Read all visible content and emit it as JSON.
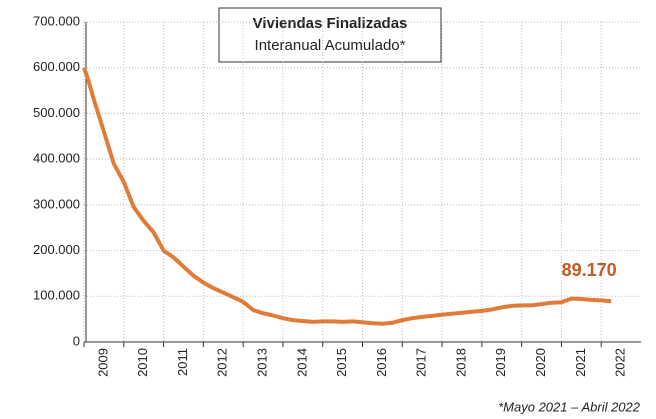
{
  "chart_data": {
    "type": "line",
    "title": "Viviendas Finalizadas",
    "subtitle": "Interanual Acumulado*",
    "footnote": "*Mayo 2021 – Abril 2022",
    "annotation": "89.170",
    "x": [
      2009.0,
      2009.1,
      2009.25,
      2009.5,
      2009.75,
      2010.0,
      2010.25,
      2010.5,
      2010.75,
      2011.0,
      2011.25,
      2011.5,
      2011.75,
      2012.0,
      2012.25,
      2012.5,
      2012.75,
      2013.0,
      2013.25,
      2013.5,
      2013.75,
      2014.0,
      2014.25,
      2014.5,
      2014.75,
      2015.0,
      2015.25,
      2015.5,
      2015.75,
      2016.0,
      2016.25,
      2016.5,
      2016.75,
      2017.0,
      2017.25,
      2017.5,
      2017.75,
      2018.0,
      2018.25,
      2018.5,
      2018.75,
      2019.0,
      2019.25,
      2019.5,
      2019.75,
      2020.0,
      2020.25,
      2020.5,
      2020.75,
      2021.0,
      2021.25,
      2021.5,
      2021.75,
      2022.0,
      2022.25
    ],
    "series": [
      {
        "color": "#e07b39",
        "values": [
          600000,
          575000,
          530000,
          460000,
          390000,
          350000,
          295000,
          265000,
          240000,
          200000,
          185000,
          165000,
          145000,
          130000,
          118000,
          108000,
          98000,
          88000,
          70000,
          63000,
          58000,
          52000,
          48000,
          46000,
          44000,
          45000,
          45000,
          44000,
          45000,
          43000,
          41000,
          40000,
          42000,
          48000,
          52000,
          55000,
          57000,
          60000,
          62000,
          64000,
          66000,
          68000,
          71000,
          76000,
          79000,
          80000,
          80000,
          83000,
          86000,
          87000,
          95000,
          94000,
          92000,
          91000,
          89170
        ]
      }
    ],
    "xlim": [
      2009,
      2023
    ],
    "xticks": [
      2009,
      2010,
      2011,
      2012,
      2013,
      2014,
      2015,
      2016,
      2017,
      2018,
      2019,
      2020,
      2021,
      2022
    ],
    "ylim": [
      0,
      700000
    ],
    "yticks": [
      0,
      {
        "value": 100000,
        "label": "100.000"
      },
      {
        "value": 200000,
        "label": "200.000"
      },
      {
        "value": 300000,
        "label": "300.000"
      },
      {
        "value": 400000,
        "label": "400.000"
      },
      {
        "value": 500000,
        "label": "500.000"
      },
      {
        "value": 600000,
        "label": "600.000"
      },
      {
        "value": 700000,
        "label": "700.000"
      }
    ],
    "grid": true
  }
}
